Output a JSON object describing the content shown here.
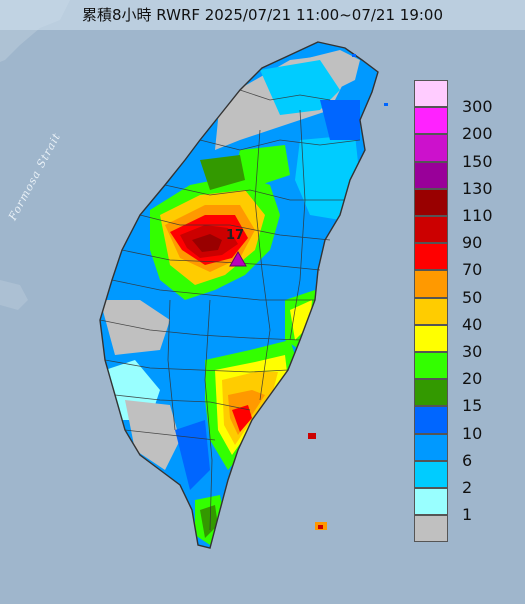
{
  "title": "累積8小時 RWRF 2025/07/21 11:00~07/21 19:00",
  "strait_label": "Formosa Strait",
  "peak_label": "17",
  "legend": [
    {
      "label": "300",
      "color": "#ffccff"
    },
    {
      "label": "200",
      "color": "#ff22ff"
    },
    {
      "label": "150",
      "color": "#cc11cc"
    },
    {
      "label": "130",
      "color": "#990099"
    },
    {
      "label": "110",
      "color": "#990000"
    },
    {
      "label": "90",
      "color": "#cc0000"
    },
    {
      "label": "70",
      "color": "#ff0000"
    },
    {
      "label": "50",
      "color": "#ff9900"
    },
    {
      "label": "40",
      "color": "#ffcc00"
    },
    {
      "label": "30",
      "color": "#ffff00"
    },
    {
      "label": "20",
      "color": "#33ff00"
    },
    {
      "label": "15",
      "color": "#339900"
    },
    {
      "label": "10",
      "color": "#0066ff"
    },
    {
      "label": "6",
      "color": "#0099ff"
    },
    {
      "label": "2",
      "color": "#00ccff"
    },
    {
      "label": "1",
      "color": "#99ffff"
    },
    {
      "label": "",
      "color": "#c0c0c0"
    }
  ],
  "colors": {
    "sea": "#9fb6cc",
    "no_rain": "#c0c0c0",
    "boundary": "#333333"
  }
}
